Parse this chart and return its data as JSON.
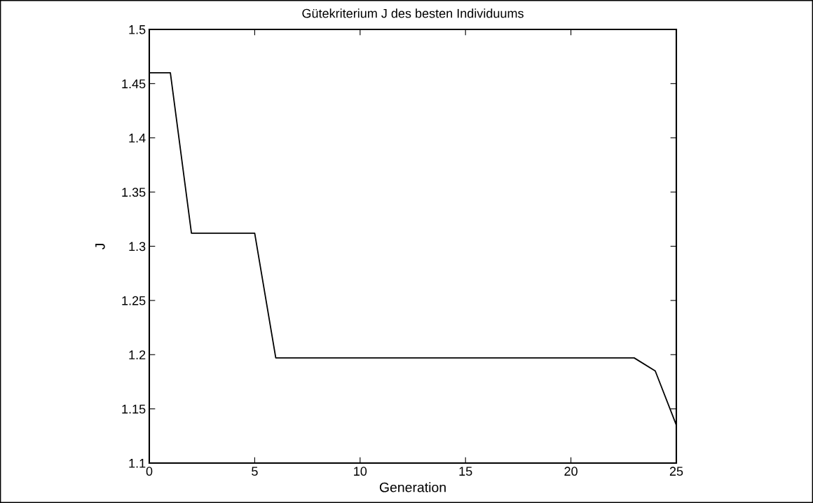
{
  "chart_data": {
    "type": "line",
    "title": "Gütekriterium J des besten Individuums",
    "xlabel": "Generation",
    "ylabel": "J",
    "x": [
      0,
      1,
      2,
      5,
      6,
      23,
      24,
      25
    ],
    "series": [
      {
        "color": "#000000",
        "values": [
          1.46,
          1.46,
          1.312,
          1.312,
          1.197,
          1.197,
          1.185,
          1.135
        ]
      }
    ],
    "xlim": [
      0,
      25
    ],
    "xticks": [
      0,
      5,
      10,
      15,
      20,
      25
    ],
    "ylim": [
      1.1,
      1.5
    ],
    "yticks": [
      1.1,
      1.15,
      1.2,
      1.25,
      1.3,
      1.35,
      1.4,
      1.45,
      1.5
    ],
    "grid": false,
    "marker": "none",
    "line_style": "solid"
  }
}
